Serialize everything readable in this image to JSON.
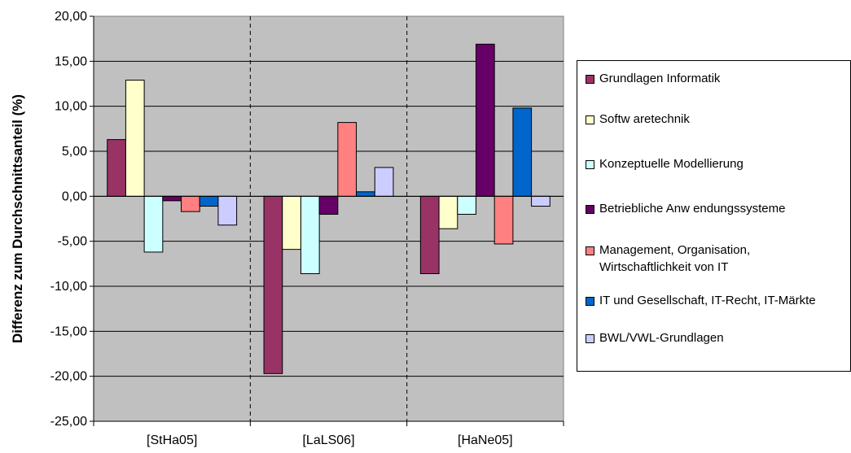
{
  "chart_data": {
    "type": "bar",
    "categories": [
      "[StHa05]",
      "[LaLS06]",
      "[HaNe05]"
    ],
    "ylabel": "Differenz zum Durchschnittsanteil (%)",
    "ylim": [
      -25,
      20
    ],
    "ytick_step": 5,
    "ytick_labels": [
      "20,00",
      "15,00",
      "10,00",
      "5,00",
      "0,00",
      "-5,00",
      "-10,00",
      "-15,00",
      "-20,00",
      "-25,00"
    ],
    "grid": true,
    "plot_background": "#c0c0c0",
    "legend_position": "right",
    "series": [
      {
        "name": "Grundlagen Informatik",
        "color": "#993366",
        "values": [
          6.3,
          -19.7,
          -8.6
        ]
      },
      {
        "name": "Softw aretechnik",
        "color": "#ffffcc",
        "values": [
          12.9,
          -5.9,
          -3.6
        ]
      },
      {
        "name": "Konzeptuelle Modellierung",
        "color": "#ccffff",
        "values": [
          -6.2,
          -8.6,
          -2.0
        ]
      },
      {
        "name": "Betriebliche Anw endungssysteme",
        "color": "#660066",
        "values": [
          -0.5,
          -2.0,
          16.9
        ]
      },
      {
        "name": "Management, Organisation,\nWirtschaftlichkeit von IT",
        "color": "#ff8080",
        "values": [
          -1.7,
          8.2,
          -5.3
        ]
      },
      {
        "name": "IT und Gesellschaft, IT-Recht, IT-Märkte",
        "color": "#0066cc",
        "values": [
          -1.1,
          0.5,
          9.8
        ]
      },
      {
        "name": "BWL/VWL-Grundlagen",
        "color": "#ccccff",
        "values": [
          -3.2,
          3.2,
          -1.1
        ]
      }
    ]
  }
}
